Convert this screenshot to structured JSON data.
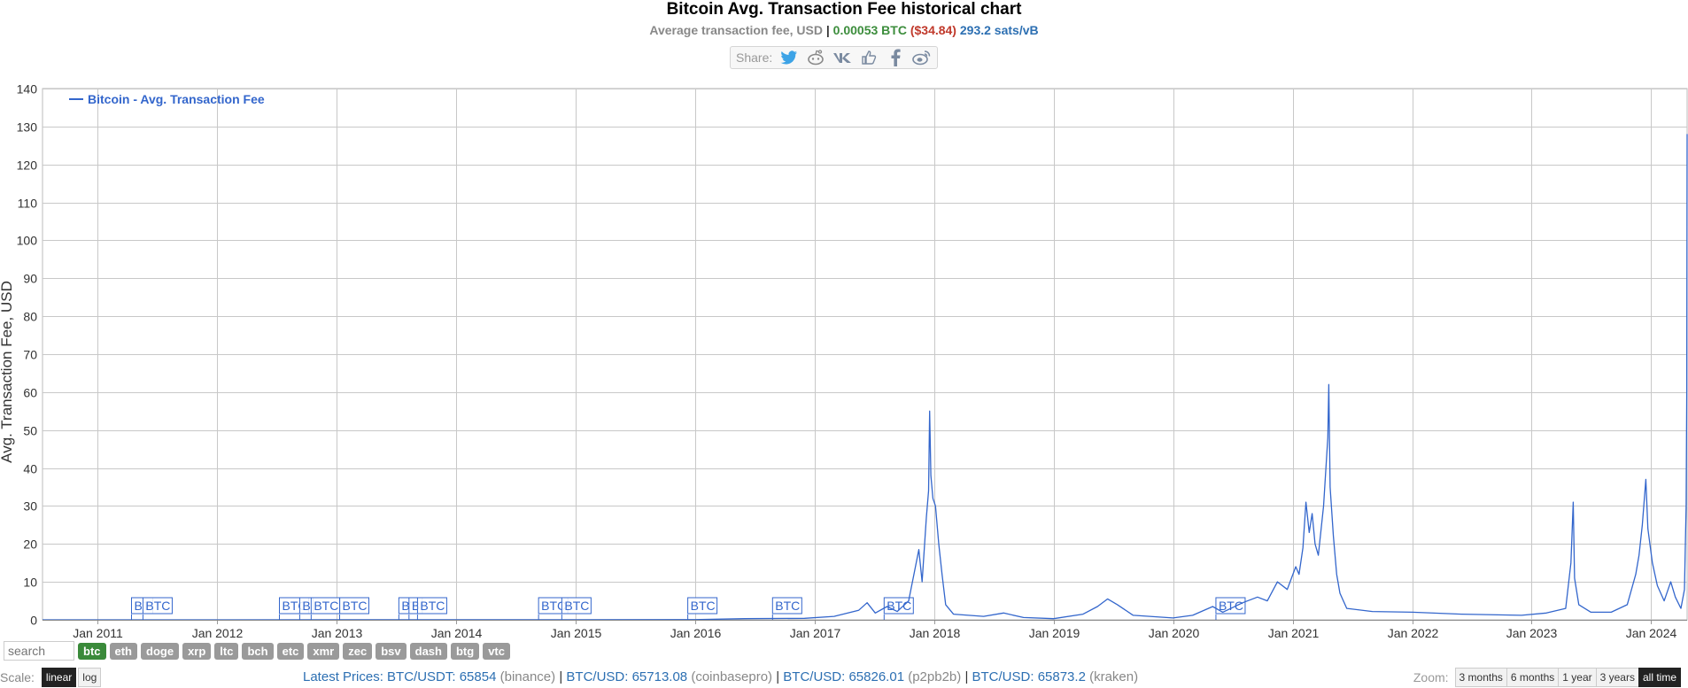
{
  "header": {
    "title": "Bitcoin Avg. Transaction Fee historical chart",
    "subtitle_prefix": "Average transaction fee, USD",
    "sep": "|",
    "btc_value": "0.00053 BTC",
    "usd_value": "($34.84)",
    "sats_value": "293.2 sats/vB"
  },
  "share": {
    "label": "Share:",
    "icons": [
      "twitter-icon",
      "reddit-icon",
      "vk-icon",
      "like-icon",
      "facebook-icon",
      "weibo-icon"
    ]
  },
  "chart_data": {
    "type": "line",
    "ylabel": "Avg. Transaction Fee, USD",
    "legend": {
      "label": "Bitcoin - Avg. Transaction Fee",
      "position": "top-left"
    },
    "ylim": [
      0,
      140
    ],
    "yticks": [
      0,
      10,
      20,
      30,
      40,
      50,
      60,
      70,
      80,
      90,
      100,
      110,
      120,
      130,
      140
    ],
    "xlim": [
      "2010-07-17",
      "2024-04-20"
    ],
    "xticks": [
      {
        "date": "2011-01-01",
        "label": "Jan 2011"
      },
      {
        "date": "2012-01-01",
        "label": "Jan 2012"
      },
      {
        "date": "2013-01-01",
        "label": "Jan 2013"
      },
      {
        "date": "2014-01-01",
        "label": "Jan 2014"
      },
      {
        "date": "2015-01-01",
        "label": "Jan 2015"
      },
      {
        "date": "2016-01-01",
        "label": "Jan 2016"
      },
      {
        "date": "2017-01-01",
        "label": "Jan 2017"
      },
      {
        "date": "2018-01-01",
        "label": "Jan 2018"
      },
      {
        "date": "2019-01-01",
        "label": "Jan 2019"
      },
      {
        "date": "2020-01-01",
        "label": "Jan 2020"
      },
      {
        "date": "2021-01-01",
        "label": "Jan 2021"
      },
      {
        "date": "2022-01-01",
        "label": "Jan 2022"
      },
      {
        "date": "2023-01-01",
        "label": "Jan 2023"
      },
      {
        "date": "2024-01-01",
        "label": "Jan 2024"
      }
    ],
    "grid": true,
    "series": [
      {
        "name": "Bitcoin - Avg. Transaction Fee",
        "color": "#3366cc",
        "points": [
          [
            "2010-07-17",
            0.0
          ],
          [
            "2015-01-01",
            0.02
          ],
          [
            "2016-01-01",
            0.05
          ],
          [
            "2016-06-01",
            0.3
          ],
          [
            "2016-12-01",
            0.4
          ],
          [
            "2017-03-01",
            0.9
          ],
          [
            "2017-05-15",
            2.5
          ],
          [
            "2017-06-10",
            4.5
          ],
          [
            "2017-07-05",
            1.8
          ],
          [
            "2017-08-10",
            3.5
          ],
          [
            "2017-09-10",
            2.2
          ],
          [
            "2017-10-15",
            5.0
          ],
          [
            "2017-11-15",
            18.5
          ],
          [
            "2017-11-25",
            10.0
          ],
          [
            "2017-12-08",
            27.0
          ],
          [
            "2017-12-15",
            34.0
          ],
          [
            "2017-12-18",
            55.0
          ],
          [
            "2017-12-22",
            38.0
          ],
          [
            "2017-12-28",
            32.0
          ],
          [
            "2018-01-05",
            30.0
          ],
          [
            "2018-01-15",
            20.0
          ],
          [
            "2018-01-25",
            12.0
          ],
          [
            "2018-02-05",
            4.0
          ],
          [
            "2018-03-01",
            1.5
          ],
          [
            "2018-06-01",
            0.9
          ],
          [
            "2018-08-01",
            1.8
          ],
          [
            "2018-10-01",
            0.6
          ],
          [
            "2019-01-01",
            0.3
          ],
          [
            "2019-04-01",
            1.5
          ],
          [
            "2019-05-15",
            3.5
          ],
          [
            "2019-06-15",
            5.5
          ],
          [
            "2019-07-15",
            4.0
          ],
          [
            "2019-09-01",
            1.2
          ],
          [
            "2020-01-01",
            0.5
          ],
          [
            "2020-03-01",
            1.2
          ],
          [
            "2020-05-01",
            3.5
          ],
          [
            "2020-06-01",
            2.0
          ],
          [
            "2020-08-01",
            4.5
          ],
          [
            "2020-09-15",
            6.0
          ],
          [
            "2020-10-15",
            5.0
          ],
          [
            "2020-11-15",
            10.0
          ],
          [
            "2020-12-15",
            8.0
          ],
          [
            "2021-01-10",
            14.0
          ],
          [
            "2021-01-20",
            12.0
          ],
          [
            "2021-02-01",
            19.0
          ],
          [
            "2021-02-10",
            31.0
          ],
          [
            "2021-02-20",
            23.0
          ],
          [
            "2021-03-01",
            28.0
          ],
          [
            "2021-03-10",
            20.0
          ],
          [
            "2021-03-20",
            17.0
          ],
          [
            "2021-04-05",
            30.0
          ],
          [
            "2021-04-18",
            48.0
          ],
          [
            "2021-04-21",
            62.0
          ],
          [
            "2021-04-25",
            35.0
          ],
          [
            "2021-05-05",
            22.0
          ],
          [
            "2021-05-15",
            12.0
          ],
          [
            "2021-05-25",
            7.0
          ],
          [
            "2021-06-15",
            3.0
          ],
          [
            "2021-09-01",
            2.2
          ],
          [
            "2022-01-01",
            2.0
          ],
          [
            "2022-06-01",
            1.5
          ],
          [
            "2022-12-01",
            1.2
          ],
          [
            "2023-02-15",
            1.8
          ],
          [
            "2023-04-15",
            3.0
          ],
          [
            "2023-05-01",
            15.0
          ],
          [
            "2023-05-08",
            31.0
          ],
          [
            "2023-05-12",
            11.0
          ],
          [
            "2023-05-25",
            4.0
          ],
          [
            "2023-07-01",
            2.0
          ],
          [
            "2023-09-01",
            2.0
          ],
          [
            "2023-10-20",
            4.0
          ],
          [
            "2023-11-15",
            12.0
          ],
          [
            "2023-11-25",
            17.0
          ],
          [
            "2023-12-05",
            25.0
          ],
          [
            "2023-12-16",
            37.0
          ],
          [
            "2023-12-22",
            24.0
          ],
          [
            "2024-01-05",
            15.0
          ],
          [
            "2024-01-20",
            9.0
          ],
          [
            "2024-02-10",
            5.0
          ],
          [
            "2024-03-01",
            10.0
          ],
          [
            "2024-03-15",
            6.0
          ],
          [
            "2024-04-01",
            3.0
          ],
          [
            "2024-04-12",
            8.0
          ],
          [
            "2024-04-17",
            30.0
          ],
          [
            "2024-04-19",
            60.0
          ],
          [
            "2024-04-20",
            128.0
          ]
        ]
      }
    ],
    "annotations": [
      {
        "date": "2011-04-15",
        "label": "BT"
      },
      {
        "date": "2011-05-20",
        "label": "BTC"
      },
      {
        "date": "2012-07-10",
        "label": "BTC"
      },
      {
        "date": "2012-09-10",
        "label": "B"
      },
      {
        "date": "2012-10-15",
        "label": "BTC"
      },
      {
        "date": "2013-01-10",
        "label": "BTC"
      },
      {
        "date": "2013-07-10",
        "label": "BT"
      },
      {
        "date": "2013-08-10",
        "label": "B"
      },
      {
        "date": "2013-09-05",
        "label": "BTC"
      },
      {
        "date": "2014-09-10",
        "label": "BTC"
      },
      {
        "date": "2014-11-20",
        "label": "BTC"
      },
      {
        "date": "2015-12-10",
        "label": "BTC"
      },
      {
        "date": "2016-08-25",
        "label": "BTC"
      },
      {
        "date": "2017-08-01",
        "label": "BTC"
      },
      {
        "date": "2020-05-11",
        "label": "BTC"
      }
    ]
  },
  "coins": {
    "search_placeholder": "search",
    "items": [
      "btc",
      "eth",
      "doge",
      "xrp",
      "ltc",
      "bch",
      "etc",
      "xmr",
      "zec",
      "bsv",
      "dash",
      "btg",
      "vtc"
    ],
    "active": "btc"
  },
  "scale": {
    "label": "Scale:",
    "linear": "linear",
    "log": "log"
  },
  "prices": {
    "label": "Latest Prices:",
    "items": [
      {
        "pair": "BTC/USDT: 65854",
        "exchange": "(binance)"
      },
      {
        "pair": "BTC/USD: 65713.08",
        "exchange": "(coinbasepro)"
      },
      {
        "pair": "BTC/USD: 65826.01",
        "exchange": "(p2pb2b)"
      },
      {
        "pair": "BTC/USD: 65873.2",
        "exchange": "(kraken)"
      }
    ]
  },
  "zoom": {
    "label": "Zoom:",
    "options": [
      "3 months",
      "6 months",
      "1 year",
      "3 years",
      "all time"
    ],
    "active": "all time"
  }
}
